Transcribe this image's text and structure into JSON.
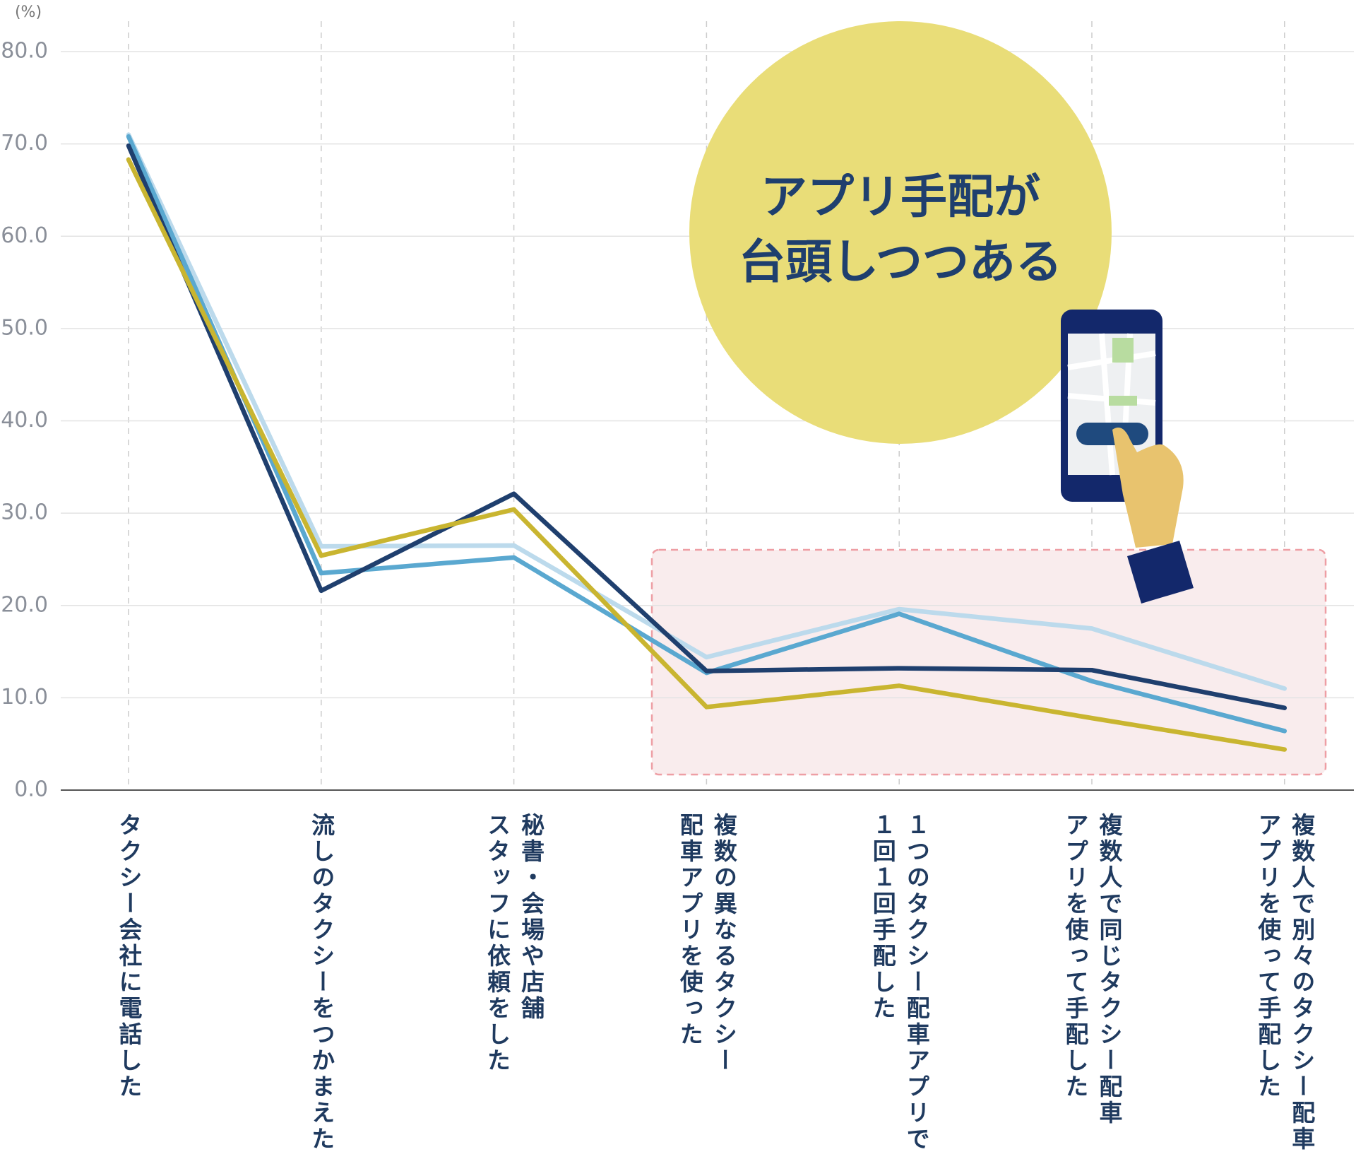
{
  "chart_data": {
    "type": "line",
    "y_unit": "(%)",
    "callout": "アプリ手配が\n台頭しつつある",
    "categories": [
      "タクシー会社に電話した",
      "流しのタクシーをつかまえた",
      "秘書・会場や店舗\nスタッフに依頼をした",
      "複数の異なるタクシー\n配車アプリを使った",
      "１つのタクシー配車アプリで\n１回１回手配した",
      "複数人で同じタクシー配車\nアプリを使って手配した",
      "複数人で別々のタクシー配車\nアプリを使って手配した"
    ],
    "series": [
      {
        "color": "#bcdaec",
        "values": [
          71.0,
          26.4,
          26.5,
          14.4,
          19.6,
          17.5,
          11.0
        ]
      },
      {
        "color": "#5aa8d0",
        "values": [
          70.8,
          23.5,
          25.2,
          12.7,
          19.1,
          11.8,
          6.4
        ]
      },
      {
        "color": "#1f3f6e",
        "values": [
          69.8,
          21.6,
          32.1,
          12.9,
          13.2,
          13.0,
          8.9
        ]
      },
      {
        "color": "#c9b530",
        "values": [
          68.3,
          25.4,
          30.4,
          9.0,
          11.3,
          7.8,
          4.4
        ]
      }
    ],
    "ylim": [
      0,
      80
    ],
    "yticks": [
      {
        "value": 0,
        "label": "0.0"
      },
      {
        "value": 10,
        "label": "10.0"
      },
      {
        "value": 20,
        "label": "20.0"
      },
      {
        "value": 30,
        "label": "30.0"
      },
      {
        "value": 40,
        "label": "40.0"
      },
      {
        "value": 50,
        "label": "50.0"
      },
      {
        "value": 60,
        "label": "60.0"
      },
      {
        "value": 70,
        "label": "70.0"
      },
      {
        "value": 80,
        "label": "80.0"
      }
    ],
    "grid": true
  }
}
